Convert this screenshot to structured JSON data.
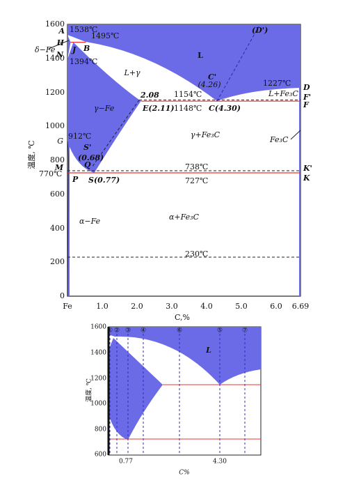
{
  "top_diagram": {
    "y_ticks": [
      "1600",
      "1400",
      "1200",
      "1000",
      "800",
      "600",
      "400",
      "200",
      "0"
    ],
    "x_ticks": [
      "Fe",
      "1.0",
      "2.0",
      "3.0",
      "4.0",
      "5.0",
      "6.0",
      "6.69"
    ],
    "x_label": "C,%",
    "y_label": "温度, ℃",
    "labels": [
      "A",
      "1538℃",
      "1495℃",
      "H",
      "δ−Fe",
      "B",
      "N",
      "J",
      "1394℃",
      "(D')",
      "L",
      "L+γ",
      "C'",
      "(4.26)",
      "1227℃",
      "D",
      "2.08",
      "1154℃",
      "L+Fe₃C",
      "F'",
      "γ−Fe",
      "E(2.11)",
      "1148℃",
      "C(4.30)",
      "F",
      "γ+Fe₃C",
      "Fe₃C",
      "912℃",
      "G",
      "S'",
      "(0.68)",
      "M",
      "Q",
      "738℃",
      "K'",
      "770℃",
      "P",
      "S(0.77)",
      "727℃",
      "K",
      "α−Fe",
      "α+Fe₃C",
      "230℃"
    ]
  },
  "bottom_diagram": {
    "y_ticks": [
      "1600",
      "1400",
      "1200",
      "1000",
      "800",
      "600"
    ],
    "section_labels": [
      "①",
      "②",
      "③",
      "④",
      "⑥",
      "⑤",
      "⑦"
    ],
    "x_marks": [
      "0.77",
      "4.30"
    ],
    "x_label": "C%",
    "y_label": "温度, ℃",
    "region_label": "L"
  }
}
